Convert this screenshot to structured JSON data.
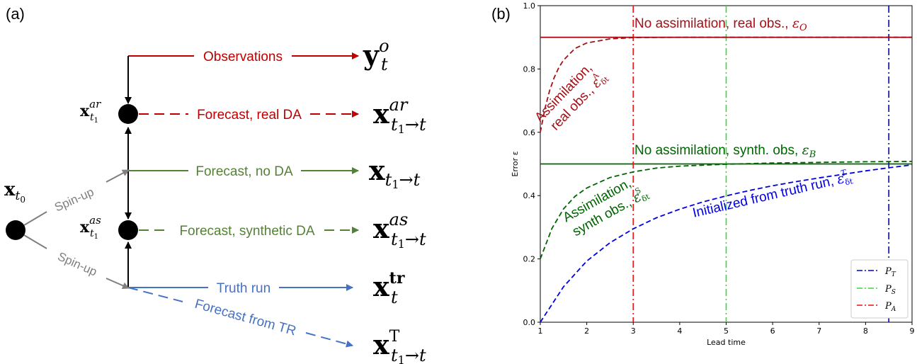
{
  "panel_a": {
    "label": "(a)",
    "arrows": {
      "observations": "Observations",
      "forecast_real_da": "Forecast, real DA",
      "forecast_no_da": "Forecast, no DA",
      "forecast_synthetic_da": "Forecast, synthetic DA",
      "truth_run": "Truth run",
      "forecast_from_tr": "Forecast from TR",
      "spin_up_upper": "Spin-up",
      "spin_up_lower": "Spin-up"
    },
    "nodes": {
      "x0": {
        "base": "x",
        "sub": "t",
        "subsub": "0"
      },
      "x_ar": {
        "base": "x",
        "sup": "ar",
        "sub": "t",
        "subsub": "1"
      },
      "x_as": {
        "base": "x",
        "sup": "as",
        "sub": "t",
        "subsub": "1"
      }
    },
    "targets": {
      "y_obs": {
        "base": "y",
        "sup": "o",
        "sub": "t"
      },
      "x_ar_fc": {
        "base": "x",
        "sup": "ar",
        "sub": "t",
        "subsub": "1",
        "subtail": "→t"
      },
      "x_noda": {
        "base": "x",
        "sub": "t",
        "subsub": "1",
        "subtail": "→t"
      },
      "x_as_fc": {
        "base": "x",
        "sup": "as",
        "sub": "t",
        "subsub": "1",
        "subtail": "→t"
      },
      "x_tr": {
        "base": "x",
        "sup": "tr",
        "sub": "t"
      },
      "x_T": {
        "base": "x",
        "sup": "T",
        "sub": "t",
        "subsub": "1",
        "subtail": "→t"
      }
    }
  },
  "panel_b": {
    "label": "(b)",
    "annotations": {
      "no_assim_real": "No assimilation, real obs., ",
      "no_assim_real_sym": "ε",
      "no_assim_real_sub": "O",
      "no_assim_synth": "No assimilation, synth. obs, ",
      "no_assim_synth_sym": "ε",
      "no_assim_synth_sub": "B",
      "assim_real_1": "Assimilation,",
      "assim_real_2": "real obs., ",
      "assim_real_sym": "ε",
      "assim_real_sub": "δt",
      "assim_real_sup": "A",
      "assim_synth_1": "Assimilation,",
      "assim_synth_2": "synth obs., ",
      "assim_synth_sym": "ε",
      "assim_synth_sub": "δt",
      "assim_synth_sup": "S",
      "truth_init": "Initialized from truth run, ",
      "truth_init_sym": "ε",
      "truth_init_sub": "δt",
      "truth_init_sup": "T"
    },
    "legend": [
      {
        "sym": "P",
        "sub": "T"
      },
      {
        "sym": "P",
        "sub": "S"
      },
      {
        "sym": "P",
        "sub": "A"
      }
    ]
  },
  "colors": {
    "red": "#c00000",
    "green": "#548235",
    "blue": "#4472c4",
    "grey": "#7f7f7f",
    "dark_red": "#a50f15",
    "dark_green": "#006400",
    "blue_line": "#0000e6",
    "purple_dashdot": "#0000cc",
    "lime": "#33dd33",
    "bright_red": "#ee1111"
  },
  "chart_data": {
    "type": "line",
    "xlabel": "Lead time",
    "ylabel": "Error ε",
    "xlim": [
      1,
      9
    ],
    "ylim": [
      0.0,
      1.0
    ],
    "xticks": [
      "1",
      "2",
      "3",
      "4",
      "5",
      "6",
      "7",
      "8",
      "9"
    ],
    "yticks": [
      "0.0",
      "0.2",
      "0.4",
      "0.6",
      "0.8",
      "1.0"
    ],
    "grid": false,
    "legend_position": "bottom-right",
    "horizontal_lines": [
      {
        "name": "ε_O",
        "y": 0.9,
        "color": "#a50f15",
        "style": "solid"
      },
      {
        "name": "ε_B",
        "y": 0.5,
        "color": "#006400",
        "style": "solid"
      }
    ],
    "vertical_lines": [
      {
        "name": "P_T",
        "x": 8.5,
        "color": "#0000cc",
        "style": "dashdot"
      },
      {
        "name": "P_S",
        "x": 5.0,
        "color": "#33dd33",
        "style": "dashdot"
      },
      {
        "name": "P_A",
        "x": 3.0,
        "color": "#ee1111",
        "style": "dashdot"
      }
    ],
    "series": [
      {
        "name": "ε_δt^A",
        "color": "#a50f15",
        "style": "dashed",
        "x": [
          1.0,
          1.1,
          1.2,
          1.3,
          1.4,
          1.5,
          1.75,
          2.0,
          2.5,
          3.0,
          4.0,
          5.0,
          6.0,
          7.0,
          8.0,
          9.0
        ],
        "values": [
          0.6,
          0.675,
          0.731,
          0.773,
          0.805,
          0.828,
          0.865,
          0.882,
          0.895,
          0.899,
          0.9,
          0.9,
          0.9,
          0.9,
          0.9,
          0.9
        ]
      },
      {
        "name": "ε_δt^S",
        "color": "#006400",
        "style": "dashed",
        "x": [
          1.0,
          1.25,
          1.5,
          1.75,
          2.0,
          2.5,
          3.0,
          3.5,
          4.0,
          5.0,
          6.0,
          7.0,
          8.0,
          9.0
        ],
        "values": [
          0.2,
          0.296,
          0.358,
          0.398,
          0.424,
          0.457,
          0.475,
          0.487,
          0.493,
          0.499,
          0.503,
          0.505,
          0.507,
          0.508
        ]
      },
      {
        "name": "ε_δt^T",
        "color": "#0000e6",
        "style": "dashed",
        "x": [
          1.0,
          1.5,
          2.0,
          2.5,
          3.0,
          3.5,
          4.0,
          4.5,
          5.0,
          5.5,
          6.0,
          6.5,
          7.0,
          7.5,
          8.0,
          8.5,
          9.0
        ],
        "values": [
          0.0,
          0.112,
          0.193,
          0.251,
          0.295,
          0.33,
          0.357,
          0.38,
          0.399,
          0.416,
          0.431,
          0.444,
          0.456,
          0.467,
          0.478,
          0.488,
          0.497
        ]
      }
    ]
  }
}
